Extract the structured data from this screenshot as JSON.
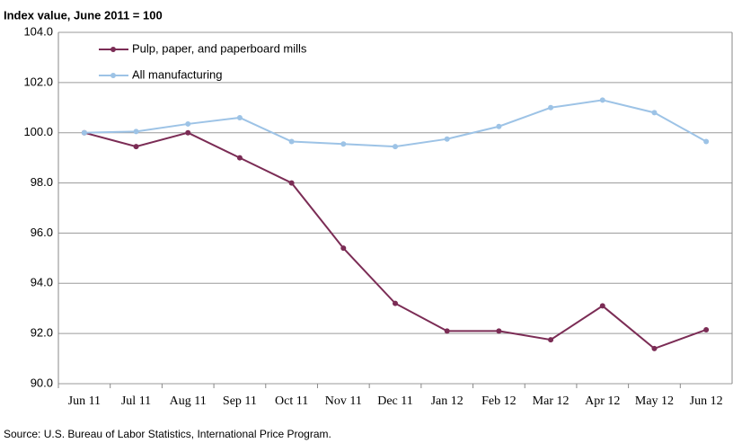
{
  "chart_data": {
    "type": "line",
    "ylabel": "Index value, June 2011 = 100",
    "source": "Source: U.S. Bureau of Labor Statistics, International Price Program.",
    "categories": [
      "Jun 11",
      "Jul 11",
      "Aug 11",
      "Sep 11",
      "Oct 11",
      "Nov 11",
      "Dec 11",
      "Jan 12",
      "Feb 12",
      "Mar 12",
      "Apr 12",
      "May 12",
      "Jun 12"
    ],
    "series": [
      {
        "name": "Pulp, paper, and paperboard mills",
        "color": "#7b2c55",
        "values": [
          100.0,
          99.45,
          100.0,
          99.0,
          98.0,
          95.4,
          93.2,
          92.1,
          92.1,
          91.75,
          93.1,
          91.4,
          92.15
        ]
      },
      {
        "name": "All manufacturing",
        "color": "#9dc3e6",
        "values": [
          100.0,
          100.05,
          100.35,
          100.6,
          99.65,
          99.55,
          99.45,
          99.75,
          100.25,
          101.0,
          101.3,
          100.8,
          99.65
        ]
      }
    ],
    "ylim": [
      90,
      104
    ],
    "yticks": [
      {
        "value": 90,
        "label": "90.0"
      },
      {
        "value": 92,
        "label": "92.0"
      },
      {
        "value": 94,
        "label": "94.0"
      },
      {
        "value": 96,
        "label": "96.0"
      },
      {
        "value": 98,
        "label": "98.0"
      },
      {
        "value": 100,
        "label": "100.0"
      },
      {
        "value": 102,
        "label": "102.0"
      },
      {
        "value": 104,
        "label": "104.0"
      }
    ],
    "grid": true,
    "legend": "upper left"
  }
}
